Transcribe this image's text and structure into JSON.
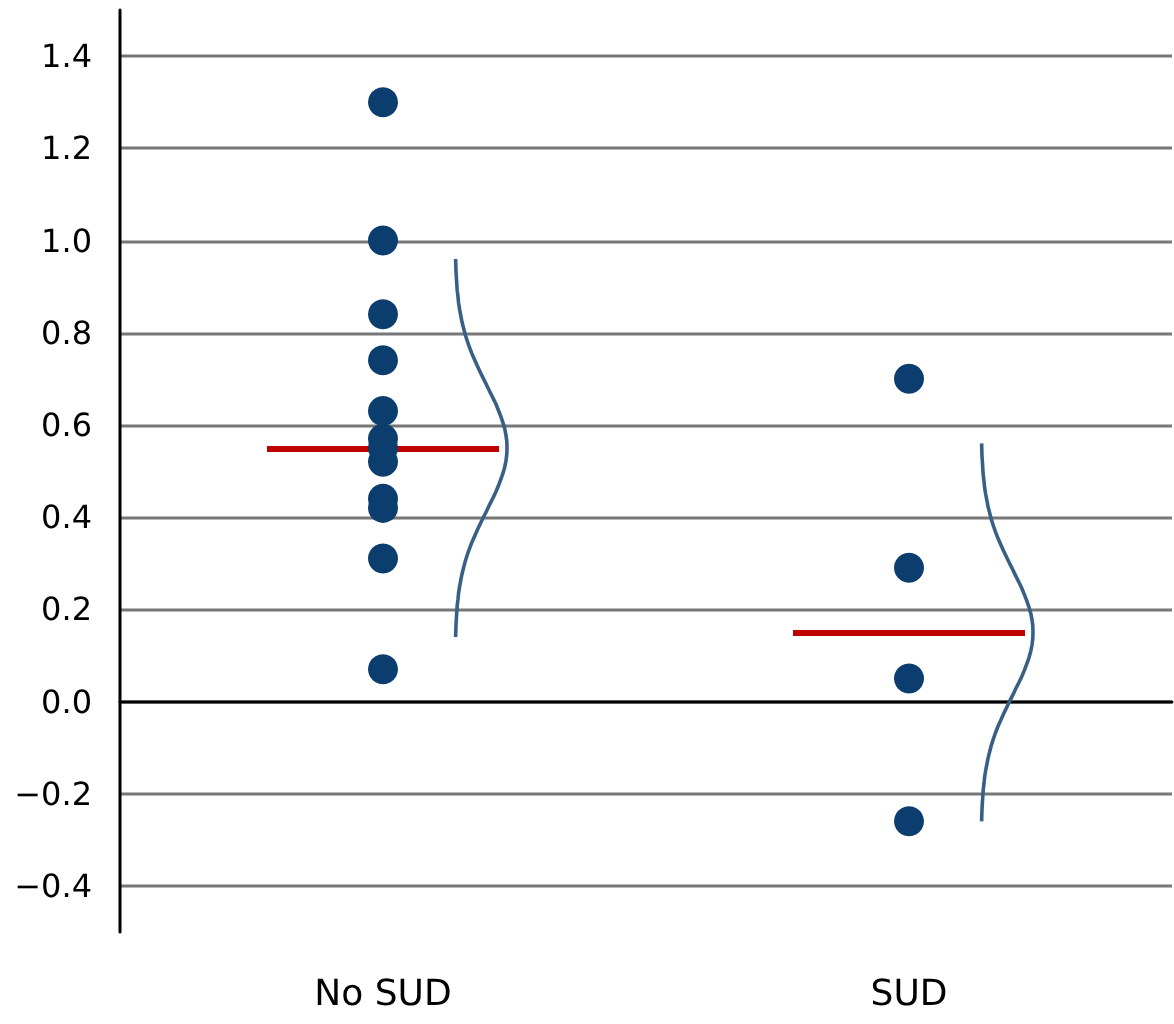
{
  "chart_data": {
    "type": "scatter",
    "categories": [
      "No SUD",
      "SUD"
    ],
    "series": [
      {
        "color": "#0b3d6e",
        "marker": "circle",
        "x": [
          "No SUD",
          "No SUD",
          "No SUD",
          "No SUD",
          "No SUD",
          "No SUD",
          "No SUD",
          "No SUD",
          "No SUD",
          "No SUD",
          "No SUD",
          "No SUD",
          "SUD",
          "SUD",
          "SUD",
          "SUD"
        ],
        "values": [
          1.3,
          1.0,
          0.84,
          0.74,
          0.63,
          0.57,
          0.55,
          0.52,
          0.44,
          0.42,
          0.31,
          0.07,
          0.7,
          0.29,
          0.05,
          -0.26
        ]
      }
    ],
    "ref_lines": [
      {
        "axis": "y",
        "value": 0.55,
        "color": "#c00000"
      },
      {
        "axis": "y",
        "value": 0.15,
        "color": "#c00000"
      }
    ],
    "ylim": [
      -0.5,
      1.5
    ],
    "yticks": [
      {
        "value": -0.4,
        "label": "−0.4"
      },
      {
        "value": -0.2,
        "label": "−0.2"
      },
      {
        "value": 0,
        "label": "0.0"
      },
      0.2,
      0.4,
      0.6,
      0.8,
      {
        "value": 1,
        "label": "1.0"
      },
      1.2,
      1.4
    ],
    "grid": "y"
  }
}
